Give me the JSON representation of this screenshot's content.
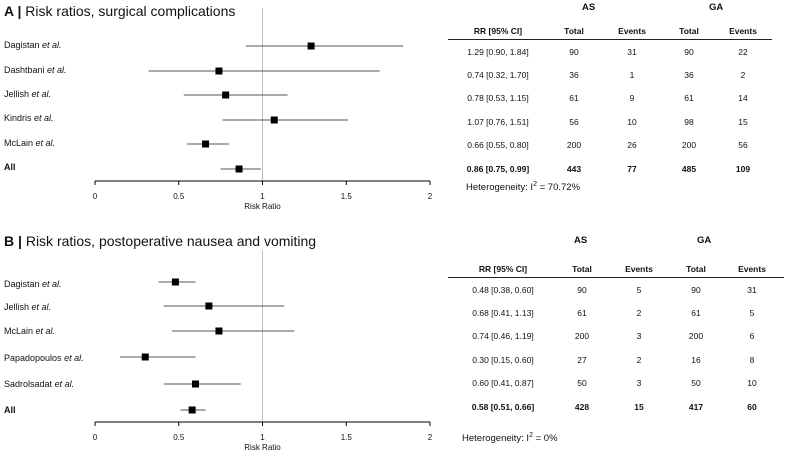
{
  "colors": {
    "marker": "#000000",
    "axis": "#000000",
    "refline": "#bdbdbd",
    "ci": "#555555",
    "background": "#ffffff"
  },
  "chart_data": [
    {
      "type": "forest",
      "panel_letter": "A",
      "title": "Risk ratios, surgical complications",
      "xlabel": "Risk Ratio",
      "xlim": [
        0,
        2
      ],
      "xticks": [
        "0",
        "0.5",
        "1",
        "1.5",
        "2"
      ],
      "reference_line": 1,
      "group_labels": {
        "as": "AS",
        "ga": "GA"
      },
      "columns": [
        "RR [95% CI]",
        "Total",
        "Events",
        "Total",
        "Events"
      ],
      "studies": [
        {
          "name": "Dagistan",
          "etal": "et al.",
          "rr": 1.29,
          "lo": 0.9,
          "hi": 1.84,
          "rr_text": "1.29 [0.90, 1.84]",
          "as_total": "90",
          "as_events": "31",
          "ga_total": "90",
          "ga_events": "22"
        },
        {
          "name": "Dashtbani",
          "etal": "et al.",
          "rr": 0.74,
          "lo": 0.32,
          "hi": 1.7,
          "rr_text": "0.74 [0.32, 1.70]",
          "as_total": "36",
          "as_events": "1",
          "ga_total": "36",
          "ga_events": "2"
        },
        {
          "name": "Jellish",
          "etal": "et al.",
          "rr": 0.78,
          "lo": 0.53,
          "hi": 1.15,
          "rr_text": "0.78 [0.53, 1.15]",
          "as_total": "61",
          "as_events": "9",
          "ga_total": "61",
          "ga_events": "14"
        },
        {
          "name": "Kindris",
          "etal": "et al.",
          "rr": 1.07,
          "lo": 0.76,
          "hi": 1.51,
          "rr_text": "1.07 [0.76, 1.51]",
          "as_total": "56",
          "as_events": "10",
          "ga_total": "98",
          "ga_events": "15"
        },
        {
          "name": "McLain",
          "etal": "et al.",
          "rr": 0.66,
          "lo": 0.55,
          "hi": 0.8,
          "rr_text": "0.66 [0.55, 0.80]",
          "as_total": "200",
          "as_events": "26",
          "ga_total": "200",
          "ga_events": "56"
        }
      ],
      "summary": {
        "name": "All",
        "rr": 0.86,
        "lo": 0.75,
        "hi": 0.99,
        "rr_text": "0.86 [0.75, 0.99]",
        "as_total": "443",
        "as_events": "77",
        "ga_total": "485",
        "ga_events": "109"
      },
      "heterogeneity": {
        "label": "Heterogeneity: I",
        "sup": "2",
        "value": " = 70.72%"
      }
    },
    {
      "type": "forest",
      "panel_letter": "B",
      "title": "Risk ratios, postoperative nausea and vomiting",
      "xlabel": "Risk Ratio",
      "xlim": [
        0,
        2
      ],
      "xticks": [
        "0",
        "0.5",
        "1",
        "1.5",
        "2"
      ],
      "reference_line": 1,
      "group_labels": {
        "as": "AS",
        "ga": "GA"
      },
      "columns": [
        "RR [95% CI]",
        "Total",
        "Events",
        "Total",
        "Events"
      ],
      "studies": [
        {
          "name": "Dagistan",
          "etal": "et al.",
          "rr": 0.48,
          "lo": 0.38,
          "hi": 0.6,
          "rr_text": "0.48 [0.38, 0.60]",
          "as_total": "90",
          "as_events": "5",
          "ga_total": "90",
          "ga_events": "31"
        },
        {
          "name": "Jellish",
          "etal": "et al.",
          "rr": 0.68,
          "lo": 0.41,
          "hi": 1.13,
          "rr_text": "0.68 [0.41, 1.13]",
          "as_total": "61",
          "as_events": "2",
          "ga_total": "61",
          "ga_events": "5"
        },
        {
          "name": "McLain",
          "etal": "et al.",
          "rr": 0.74,
          "lo": 0.46,
          "hi": 1.19,
          "rr_text": "0.74 [0.46, 1.19]",
          "as_total": "200",
          "as_events": "3",
          "ga_total": "200",
          "ga_events": "6"
        },
        {
          "name": "Papadopoulos",
          "etal": "et al.",
          "rr": 0.3,
          "lo": 0.15,
          "hi": 0.6,
          "rr_text": "0.30 [0.15, 0.60]",
          "as_total": "27",
          "as_events": "2",
          "ga_total": "16",
          "ga_events": "8"
        },
        {
          "name": "Sadrolsadat",
          "etal": "et al.",
          "rr": 0.6,
          "lo": 0.41,
          "hi": 0.87,
          "rr_text": "0.60 [0.41, 0.87]",
          "as_total": "50",
          "as_events": "3",
          "ga_total": "50",
          "ga_events": "10"
        }
      ],
      "summary": {
        "name": "All",
        "rr": 0.58,
        "lo": 0.51,
        "hi": 0.66,
        "rr_text": "0.58 [0.51, 0.66]",
        "as_total": "428",
        "as_events": "15",
        "ga_total": "417",
        "ga_events": "60"
      },
      "heterogeneity": {
        "label": "Heterogeneity: I",
        "sup": "2",
        "value": " = 0%"
      }
    }
  ]
}
